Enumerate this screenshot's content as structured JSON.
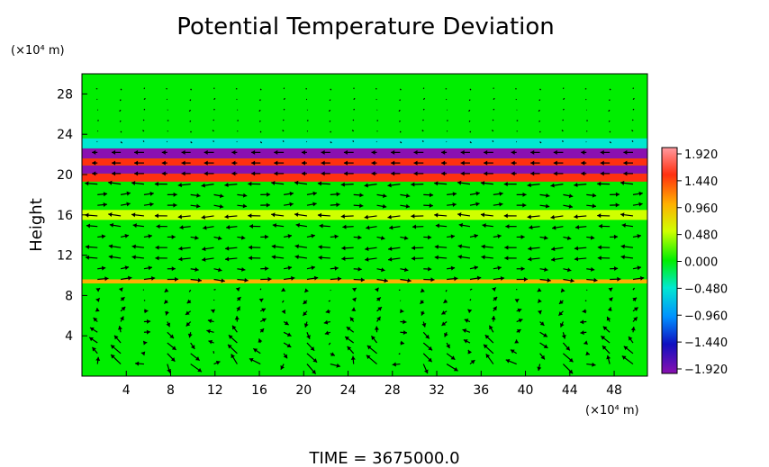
{
  "chart_data": {
    "type": "heatmap",
    "title": "Potential Temperature Deviation",
    "ylabel": "Height",
    "y_unit": "(×10⁴ m)",
    "x_unit": "(×10⁴ m)",
    "xlim": [
      0,
      51
    ],
    "ylim": [
      0,
      30
    ],
    "x_ticks": [
      4,
      8,
      12,
      16,
      20,
      24,
      28,
      32,
      36,
      40,
      44,
      48
    ],
    "y_ticks": [
      4,
      8,
      12,
      16,
      20,
      24,
      28
    ],
    "colorbar": {
      "labels": [
        "1.920",
        "1.440",
        "0.960",
        "0.480",
        "0.000",
        "−0.480",
        "−0.960",
        "−1.440",
        "−1.920"
      ],
      "range": [
        -1.92,
        1.92
      ]
    },
    "bands": [
      {
        "y0": 0,
        "y1": 9.2,
        "value": 0.05
      },
      {
        "y0": 9.2,
        "y1": 9.6,
        "value": 0.75
      },
      {
        "y0": 9.6,
        "y1": 10.4,
        "value": 0.2
      },
      {
        "y0": 10.4,
        "y1": 15.5,
        "value": 0.1
      },
      {
        "y0": 15.5,
        "y1": 16.5,
        "value": 0.35
      },
      {
        "y0": 16.5,
        "y1": 19.3,
        "value": 0.05
      },
      {
        "y0": 19.3,
        "y1": 20.1,
        "value": 1.6
      },
      {
        "y0": 20.1,
        "y1": 20.9,
        "value": -1.85
      },
      {
        "y0": 20.9,
        "y1": 21.6,
        "value": 1.6
      },
      {
        "y0": 21.6,
        "y1": 22.6,
        "value": -1.7
      },
      {
        "y0": 22.6,
        "y1": 23.6,
        "value": -0.6
      },
      {
        "y0": 23.6,
        "y1": 30,
        "value": 0.05
      }
    ],
    "time_label": "TIME = 3675000.0"
  }
}
